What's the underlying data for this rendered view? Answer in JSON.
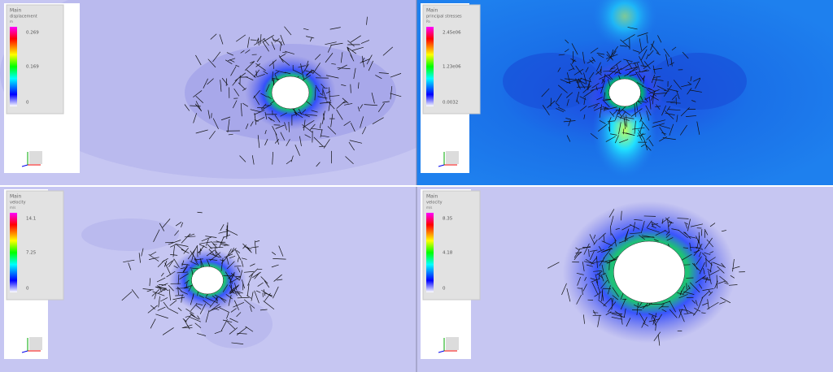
{
  "panels": [
    {
      "title": "Main",
      "field": "displacement",
      "unit": "m",
      "legend": [
        "0.269",
        "0.169",
        "0"
      ]
    },
    {
      "title": "Main",
      "field": "principal stresses",
      "unit": "Pa",
      "legend": [
        "2.45e06",
        "1.23e06",
        "0.0032"
      ]
    },
    {
      "title": "Main",
      "field": "velocity",
      "unit": "m/s",
      "legend": [
        "14.1",
        "7.25",
        "0"
      ]
    },
    {
      "title": "Main",
      "field": "velocity",
      "unit": "m/s",
      "legend": [
        "8.35",
        "4.18",
        "0"
      ]
    }
  ]
}
